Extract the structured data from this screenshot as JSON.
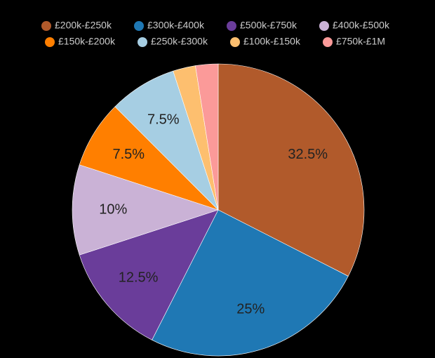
{
  "chart_data": {
    "type": "pie",
    "categories": [
      "£200k-£250k",
      "£300k-£400k",
      "£500k-£750k",
      "£400k-£500k",
      "£150k-£200k",
      "£250k-£300k",
      "£100k-£150k",
      "£750k-£1M"
    ],
    "values": [
      32.5,
      25,
      12.5,
      10,
      7.5,
      7.5,
      2.5,
      2.5
    ],
    "value_labels": [
      "32.5%",
      "25%",
      "12.5%",
      "10%",
      "7.5%",
      "7.5%",
      null,
      null
    ],
    "colors": [
      "#b15a2b",
      "#1f78b4",
      "#6a3d9a",
      "#cab2d6",
      "#ff7f00",
      "#a6cee3",
      "#fdbf6f",
      "#fb9a99"
    ],
    "legend": "top"
  }
}
